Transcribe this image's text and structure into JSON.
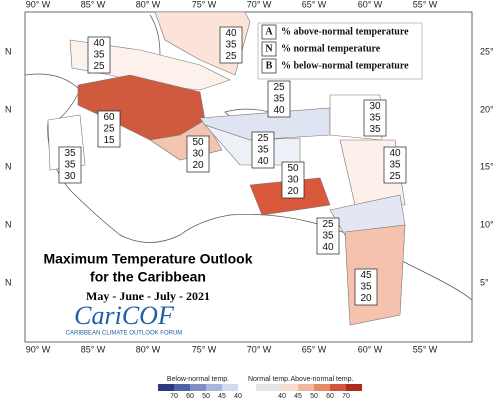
{
  "title": [
    "Maximum Temperature Outlook",
    "for the Caribbean"
  ],
  "subtitle": "May - June - July - 2021",
  "logo": {
    "name": "CariCOF",
    "tagline": "CARIBBEAN CLIMATE OUTLOOK FORUM"
  },
  "key": [
    {
      "letter": "A",
      "text": "% above-normal temperature"
    },
    {
      "letter": "N",
      "text": "% normal temperature"
    },
    {
      "letter": "B",
      "text": "% below-normal temperature"
    }
  ],
  "lon_labels": [
    "90° W",
    "85° W",
    "80° W",
    "75° W",
    "70° W",
    "65° W",
    "60° W",
    "55° W"
  ],
  "lat_labels_left": [
    "N",
    "N",
    "N",
    "N",
    "N"
  ],
  "lat_labels_right": [
    "25°",
    "20°",
    "15°",
    "10°",
    "5°"
  ],
  "regions": [
    {
      "values": [
        "40",
        "35",
        "25"
      ]
    },
    {
      "values": [
        "40",
        "35",
        "25"
      ]
    },
    {
      "values": [
        "60",
        "25",
        "15"
      ]
    },
    {
      "values": [
        "50",
        "30",
        "20"
      ]
    },
    {
      "values": [
        "35",
        "35",
        "30"
      ]
    },
    {
      "values": [
        "25",
        "35",
        "40"
      ]
    },
    {
      "values": [
        "30",
        "35",
        "35"
      ]
    },
    {
      "values": [
        "25",
        "35",
        "40"
      ]
    },
    {
      "values": [
        "40",
        "35",
        "25"
      ]
    },
    {
      "values": [
        "50",
        "30",
        "20"
      ]
    },
    {
      "values": [
        "25",
        "35",
        "40"
      ]
    },
    {
      "values": [
        "45",
        "35",
        "20"
      ]
    }
  ],
  "colorbar": {
    "below_label": "Below-normal temp.",
    "normal_label": "Normal temp.",
    "above_label": "Above-normal temp.",
    "below_ticks": [
      "70",
      "60",
      "50",
      "45",
      "40"
    ],
    "above_ticks": [
      "40",
      "45",
      "50",
      "60",
      "70"
    ]
  }
}
